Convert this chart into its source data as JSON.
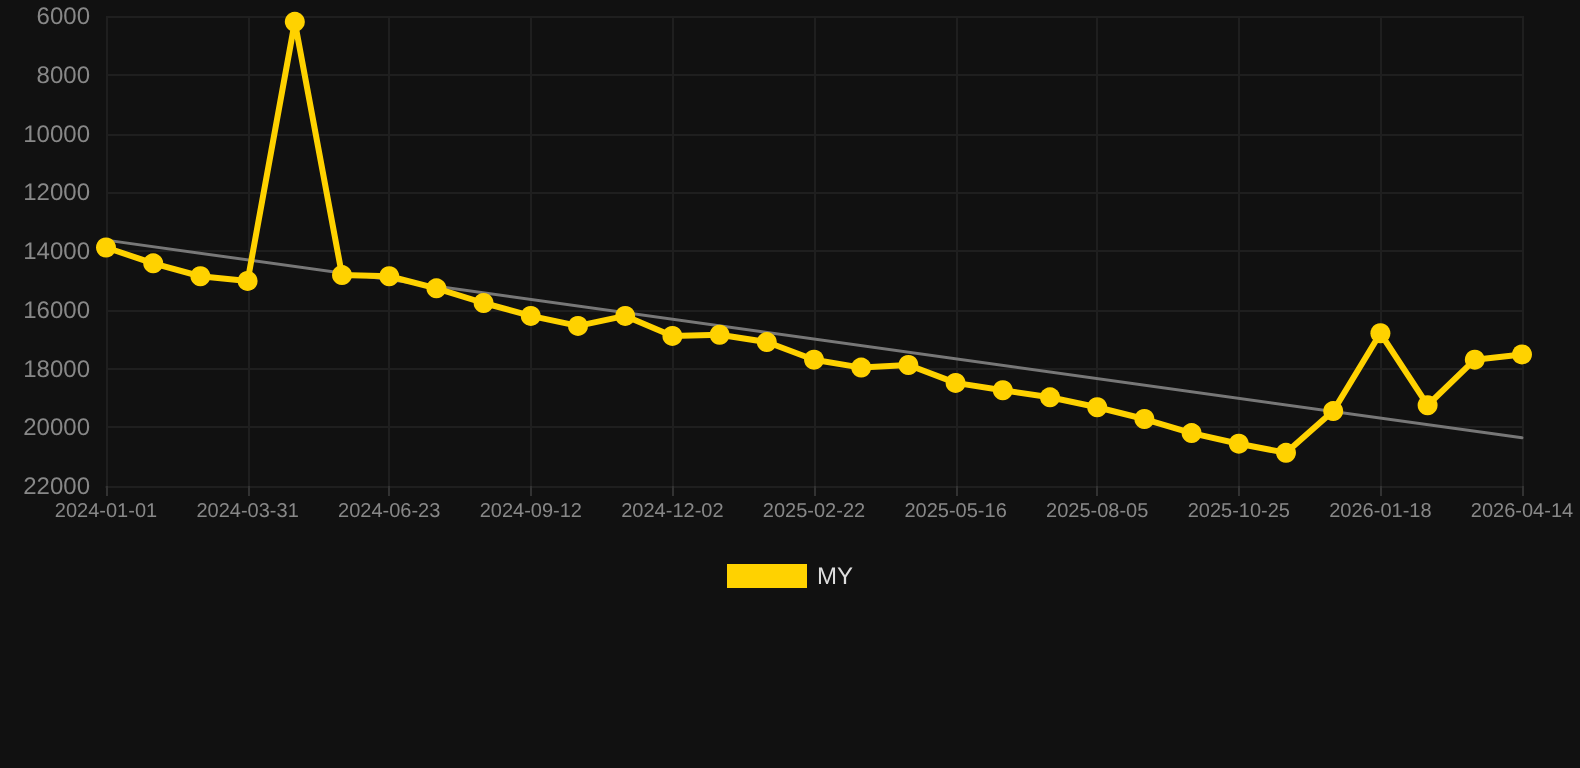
{
  "chart_data": {
    "type": "line",
    "categories": [
      "2024-01-01",
      null,
      null,
      "2024-03-31",
      null,
      null,
      "2024-06-23",
      null,
      null,
      "2024-09-12",
      null,
      null,
      "2024-12-02",
      null,
      null,
      "2025-02-22",
      null,
      null,
      "2025-05-16",
      null,
      null,
      "2025-08-05",
      null,
      null,
      "2025-10-25",
      null,
      null,
      "2026-01-18",
      null,
      null,
      "2026-04-14"
    ],
    "series": [
      {
        "name": "MY",
        "color": "#ffd200",
        "marker": "circle",
        "values": [
          13880,
          14420,
          14860,
          15020,
          6200,
          14820,
          14860,
          15270,
          15770,
          16210,
          16550,
          16210,
          16890,
          16850,
          17100,
          17700,
          17970,
          17880,
          18490,
          18740,
          18980,
          19320,
          19720,
          20200,
          20560,
          20870,
          19450,
          16800,
          19250,
          17700,
          17520
        ]
      },
      {
        "type": "line",
        "color": "#777777",
        "marker": "none",
        "values": [
          13630,
          null,
          null,
          null,
          null,
          null,
          null,
          null,
          null,
          null,
          null,
          null,
          null,
          null,
          null,
          null,
          null,
          null,
          null,
          null,
          null,
          null,
          null,
          null,
          null,
          null,
          null,
          null,
          null,
          null,
          20360
        ]
      }
    ],
    "ylim": [
      22000,
      6000
    ],
    "yticks": [
      6000,
      8000,
      10000,
      12000,
      14000,
      16000,
      18000,
      20000,
      22000
    ],
    "grid": true,
    "legend": "bottom"
  }
}
